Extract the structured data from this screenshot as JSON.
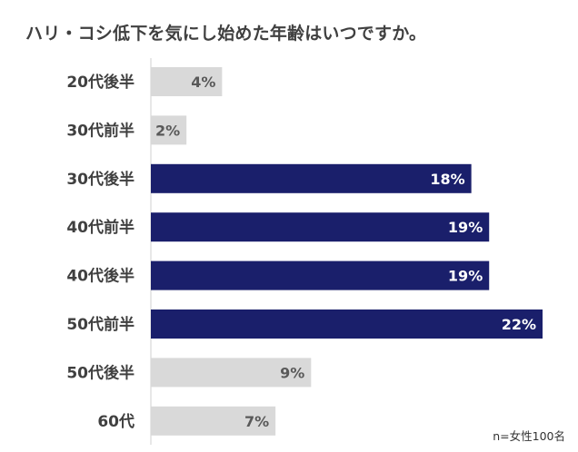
{
  "chart_data": {
    "type": "bar",
    "orientation": "horizontal",
    "title": "ハリ・コシ低下を気にし始めた年齢はいつですか。",
    "categories": [
      "20代後半",
      "30代前半",
      "30代後半",
      "40代前半",
      "40代後半",
      "50代前半",
      "50代後半",
      "60代"
    ],
    "values": [
      4,
      2,
      18,
      19,
      19,
      22,
      9,
      7
    ],
    "value_labels": [
      "4%",
      "2%",
      "18%",
      "19%",
      "19%",
      "22%",
      "9%",
      "7%"
    ],
    "unit": "%",
    "highlight": [
      false,
      false,
      true,
      true,
      true,
      true,
      false,
      false
    ],
    "xlim": [
      0,
      22
    ],
    "grid": false,
    "legend": "none",
    "note": "n=女性100名"
  },
  "colors": {
    "highlight_bar": "#1a1f6b",
    "normal_bar": "#d9d9d9",
    "highlight_label": "#ffffff",
    "normal_label": "#595959",
    "category_label": "#404040",
    "axis_line": "#d0d0d0"
  }
}
